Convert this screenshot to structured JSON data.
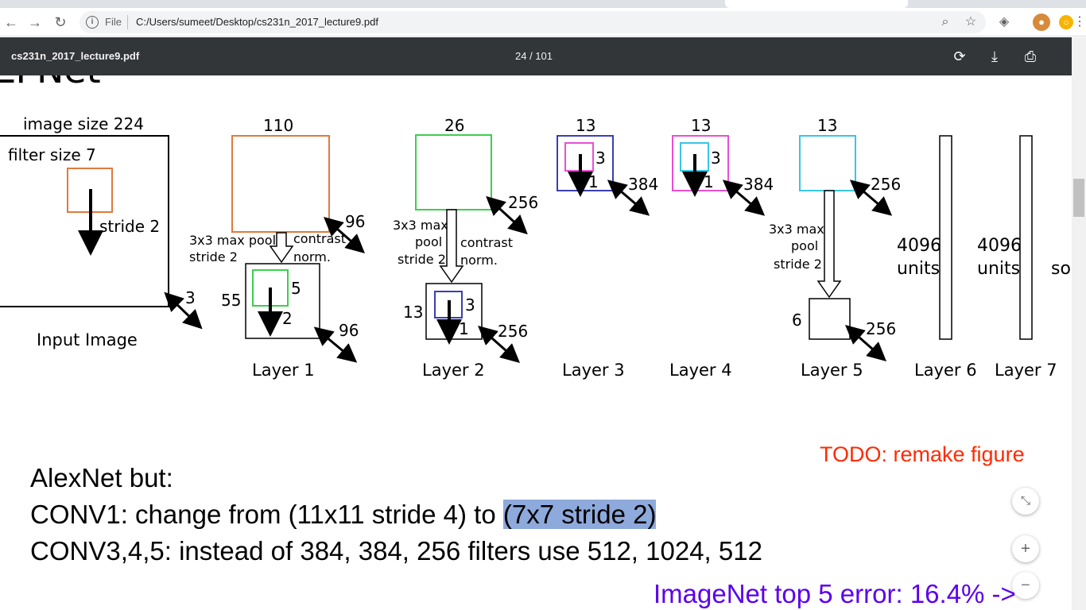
{
  "browser": {
    "file_label": "File",
    "url": "C:/Users/sumeet/Desktop/cs231n_2017_lecture9.pdf",
    "icons": [
      "back-icon",
      "forward-icon",
      "reload-icon",
      "info-icon",
      "zoom-icon",
      "star-icon",
      "extension-icon",
      "avatar",
      "notification-icon",
      "menu-icon"
    ]
  },
  "pdf_toolbar": {
    "title": "cs231n_2017_lecture9.pdf",
    "page_indicator": "24 / 101"
  },
  "slide": {
    "heading_fragment": "ZFNet",
    "diagram": {
      "input": {
        "size_label": "image size 224",
        "filter_label": "filter size 7",
        "stride_label": "stride 2",
        "depth": "3",
        "caption": "Input Image"
      },
      "layer1": {
        "top": "110",
        "depth": "96",
        "pool_label_1": "3x3 max pool",
        "pool_label_2": "stride 2",
        "norm_label_1": "contrast",
        "norm_label_2": "norm.",
        "small_size": "55",
        "kernel": "5",
        "stride": "2",
        "small_depth": "96",
        "caption": "Layer 1"
      },
      "layer2": {
        "top": "26",
        "depth": "256",
        "pool_label_1": "3x3 max",
        "pool_label_2": "pool",
        "pool_label_3": "stride 2",
        "norm_label_1": "contrast",
        "norm_label_2": "norm.",
        "small_size": "13",
        "kernel": "3",
        "stride": "1",
        "small_depth": "256",
        "caption": "Layer 2"
      },
      "layer3": {
        "top": "13",
        "kernel": "3",
        "stride": "1",
        "depth": "384",
        "caption": "Layer 3"
      },
      "layer4": {
        "top": "13",
        "kernel": "3",
        "stride": "1",
        "depth": "384",
        "caption": "Layer 4"
      },
      "layer5": {
        "top": "13",
        "depth": "256",
        "pool_label_1": "3x3 max",
        "pool_label_2": "pool",
        "pool_label_3": "stride 2",
        "small_size": "6",
        "small_depth": "256",
        "caption": "Layer 5"
      },
      "layer6": {
        "units_value": "4096",
        "units_label": "units",
        "caption": "Layer 6"
      },
      "layer7": {
        "units_value": "4096",
        "units_label": "units",
        "caption": "Layer 7"
      },
      "cut_label": "so"
    },
    "todo": "TODO: remake figure",
    "line1": "AlexNet but:",
    "line2_pre": "CONV1: change from (11x11 stride 4) to ",
    "line2_highlight": "(7x7 stride 2)",
    "line3": "CONV3,4,5: instead of 384, 384, 256 filters use 512, 1024, 512",
    "imagenet": "ImageNet top 5 error: 16.4% ->"
  },
  "zoom_controls": {
    "fit": "⤡",
    "zoom_in": "+",
    "zoom_out": "−"
  },
  "colors": {
    "orange": "#e07a3c",
    "green": "#3ccf4e",
    "blue": "#3a3fb0",
    "pink": "#e84fd6",
    "cyan": "#38c6e6",
    "toolbar": "#323639"
  }
}
